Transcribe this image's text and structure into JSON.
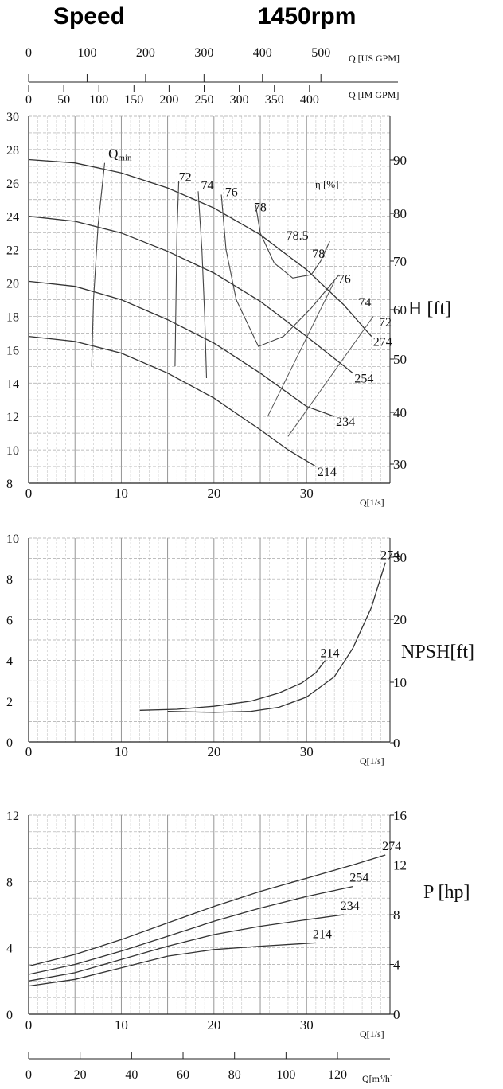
{
  "header": {
    "speed_label": "Speed",
    "rpm_label": "1450rpm"
  },
  "axes": {
    "us_gpm": {
      "label": "Q [US GPM]",
      "ticks": [
        "0",
        "100",
        "200",
        "300",
        "400",
        "500"
      ]
    },
    "im_gpm": {
      "label": "Q [IM GPM]",
      "ticks": [
        "0",
        "50",
        "100",
        "150",
        "200",
        "250",
        "300",
        "350",
        "400"
      ]
    },
    "q_ls": {
      "label": "Q[1/s]",
      "ticks": [
        "0",
        "10",
        "20",
        "30"
      ]
    },
    "q_m3h": {
      "label": "Q[m³/h]",
      "ticks": [
        "0",
        "20",
        "40",
        "60",
        "80",
        "100",
        "120"
      ]
    }
  },
  "chart_data": [
    {
      "type": "line",
      "id": "head",
      "xlabel": "Q[1/s]",
      "ylabel_right": "H [ft]",
      "xlim": [
        0,
        39
      ],
      "ylim": [
        8,
        30
      ],
      "left_ticks": [
        "30",
        "28",
        "26",
        "24",
        "22",
        "20",
        "18",
        "16",
        "14",
        "12",
        "10",
        "8"
      ],
      "right_ticks": [
        "90",
        "80",
        "70",
        "60",
        "50",
        "40",
        "30"
      ],
      "efficiency_label": "η [%]",
      "qmin_label": "Q",
      "qmin_sub": "min",
      "series": [
        {
          "name": "274",
          "x": [
            0,
            5,
            10,
            15,
            20,
            25,
            30,
            34,
            37
          ],
          "y": [
            27.4,
            27.2,
            26.6,
            25.7,
            24.5,
            22.9,
            20.8,
            18.7,
            16.8
          ]
        },
        {
          "name": "254",
          "x": [
            0,
            5,
            10,
            15,
            20,
            25,
            30,
            35
          ],
          "y": [
            24.0,
            23.7,
            23.0,
            21.9,
            20.6,
            18.9,
            16.8,
            14.6
          ]
        },
        {
          "name": "234",
          "x": [
            0,
            5,
            10,
            15,
            20,
            25,
            30,
            33
          ],
          "y": [
            20.1,
            19.8,
            19.0,
            17.8,
            16.4,
            14.6,
            12.6,
            12.0
          ]
        },
        {
          "name": "214",
          "x": [
            0,
            5,
            10,
            15,
            20,
            25,
            28,
            31
          ],
          "y": [
            16.8,
            16.5,
            15.8,
            14.6,
            13.1,
            11.2,
            10.0,
            9.0
          ]
        }
      ],
      "efficiency_curves": [
        {
          "name": "72",
          "x": [
            15.8,
            15.9,
            16.0,
            16.2
          ],
          "y": [
            15.0,
            19.0,
            23.0,
            26.1
          ]
        },
        {
          "name": "74",
          "x": [
            19.2,
            19.0,
            18.7,
            18.3
          ],
          "y": [
            14.3,
            18.0,
            22.0,
            25.5
          ]
        },
        {
          "name": "76",
          "x": [
            20.8,
            21.3,
            22.4,
            24.8,
            27.5,
            30.5,
            33.5
          ],
          "y": [
            25.3,
            22.0,
            19.0,
            16.2,
            16.8,
            18.5,
            20.5
          ]
        },
        {
          "name": "78",
          "x": [
            24.5,
            25.0,
            26.5,
            28.5,
            30.5,
            31.5,
            32.5
          ],
          "y": [
            24.7,
            23.0,
            21.2,
            20.3,
            20.5,
            21.3,
            22.5
          ]
        }
      ],
      "efficiency_labels": [
        {
          "text": "72",
          "x": 16.2,
          "y": 26.1
        },
        {
          "text": "74",
          "x": 18.6,
          "y": 25.6
        },
        {
          "text": "76",
          "x": 21.2,
          "y": 25.2
        },
        {
          "text": "78",
          "x": 24.3,
          "y": 24.3
        },
        {
          "text": "78.5",
          "x": 27.8,
          "y": 22.6
        },
        {
          "text": "78",
          "x": 30.6,
          "y": 21.5
        },
        {
          "text": "76",
          "x": 33.4,
          "y": 20.0
        },
        {
          "text": "74",
          "x": 35.6,
          "y": 18.6
        },
        {
          "text": "72",
          "x": 37.8,
          "y": 17.4
        }
      ],
      "qmin_line": {
        "x": [
          6.8,
          7.0,
          7.5,
          8.2
        ],
        "y": [
          15.0,
          19.0,
          23.5,
          27.2
        ]
      },
      "bep_lines": [
        {
          "x": [
            25.8,
            33.0
          ],
          "y": [
            12.0,
            20.1
          ]
        },
        {
          "x": [
            28.0,
            37.2
          ],
          "y": [
            10.8,
            18.0
          ]
        }
      ]
    },
    {
      "type": "line",
      "id": "npsh",
      "xlabel": "Q[1/s]",
      "ylabel_right": "NPSH[ft]",
      "xlim": [
        0,
        39
      ],
      "ylim": [
        0,
        10
      ],
      "left_ticks": [
        "10",
        "8",
        "6",
        "4",
        "2",
        "0"
      ],
      "right_ticks": [
        "30",
        "20",
        "10",
        "0"
      ],
      "series": [
        {
          "name": "214",
          "x": [
            12,
            16,
            20,
            24,
            27,
            29.5,
            31,
            32
          ],
          "y": [
            1.55,
            1.6,
            1.75,
            2.0,
            2.4,
            2.9,
            3.4,
            4.0
          ]
        },
        {
          "name": "274",
          "x": [
            15,
            20,
            24,
            27,
            30,
            33,
            35,
            37,
            38.5
          ],
          "y": [
            1.5,
            1.45,
            1.5,
            1.7,
            2.2,
            3.2,
            4.6,
            6.6,
            8.8
          ]
        }
      ]
    },
    {
      "type": "line",
      "id": "power",
      "xlabel": "Q[1/s]",
      "ylabel_right": "P [hp]",
      "xlim": [
        0,
        39
      ],
      "ylim": [
        0,
        12
      ],
      "left_ticks": [
        "12",
        "8",
        "4",
        "0"
      ],
      "right_ticks": [
        "16",
        "12",
        "8",
        "4",
        "0"
      ],
      "series": [
        {
          "name": "274",
          "x": [
            0,
            5,
            10,
            15,
            20,
            25,
            30,
            35,
            38.5
          ],
          "y": [
            2.9,
            3.6,
            4.5,
            5.5,
            6.5,
            7.4,
            8.2,
            9.0,
            9.6
          ]
        },
        {
          "name": "254",
          "x": [
            0,
            5,
            10,
            15,
            20,
            25,
            30,
            35
          ],
          "y": [
            2.4,
            3.0,
            3.8,
            4.7,
            5.6,
            6.4,
            7.1,
            7.7
          ]
        },
        {
          "name": "234",
          "x": [
            0,
            5,
            10,
            15,
            20,
            25,
            30,
            34
          ],
          "y": [
            2.0,
            2.5,
            3.3,
            4.1,
            4.8,
            5.3,
            5.7,
            6.0
          ]
        },
        {
          "name": "214",
          "x": [
            0,
            5,
            10,
            15,
            20,
            25,
            31
          ],
          "y": [
            1.7,
            2.1,
            2.8,
            3.5,
            3.9,
            4.1,
            4.3
          ]
        }
      ]
    }
  ]
}
